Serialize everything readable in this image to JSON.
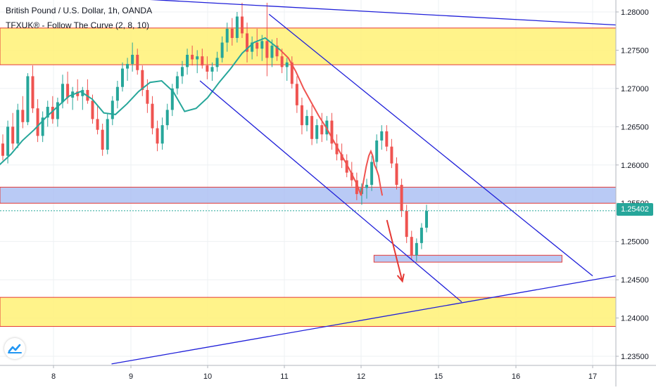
{
  "chart_data": {
    "type": "candlestick",
    "symbol_title": "British Pound / U.S. Dollar, 1h, OANDA",
    "indicator_title": "TFXUK® - Follow The Curve (2, 8, 10)",
    "x_ticks": [
      "8",
      "9",
      "10",
      "11",
      "12",
      "15",
      "16",
      "17"
    ],
    "y_ticks": [
      "1.28000",
      "1.27500",
      "1.27000",
      "1.26500",
      "1.26000",
      "1.25500",
      "1.25000",
      "1.24500",
      "1.24000",
      "1.23500"
    ],
    "ylim": [
      1.2335,
      1.2815
    ],
    "last_price": "1.25402",
    "colors": {
      "up": "#26a69a",
      "down": "#ef5350",
      "trendline": "#1f1fd9",
      "fast_ma": "#ef5350",
      "slow_ma": "#26a69a",
      "supply_zone": "#fff176",
      "demand_zone": "#a8bdf2",
      "zone_border": "#e53935",
      "arrow": "#e53935"
    },
    "zones": [
      {
        "kind": "yellow",
        "top": 1.2779,
        "bottom": 1.2731
      },
      {
        "kind": "blue",
        "top": 1.2571,
        "bottom": 1.255
      },
      {
        "kind": "blue-small",
        "top": 1.2482,
        "bottom": 1.2473,
        "x_from": 12.5,
        "x_to": 16.6
      },
      {
        "kind": "yellow",
        "top": 1.2427,
        "bottom": 1.2389
      }
    ],
    "trendlines": [
      {
        "x1": 9.1,
        "y1": 1.2817,
        "x2": 17.3,
        "y2": 1.2783
      },
      {
        "x1": 10.8,
        "y1": 1.2797,
        "x2": 17.0,
        "y2": 1.2455
      },
      {
        "x1": 9.9,
        "y1": 1.271,
        "x2": 15.3,
        "y2": 1.2421
      },
      {
        "x1": 8.75,
        "y1": 1.234,
        "x2": 17.3,
        "y2": 1.2455
      }
    ],
    "candles_ohlc": [
      [
        1.2628,
        1.264,
        1.2606,
        1.2612
      ],
      [
        1.2612,
        1.2658,
        1.2602,
        1.265
      ],
      [
        1.265,
        1.2668,
        1.262,
        1.2628
      ],
      [
        1.2628,
        1.268,
        1.2622,
        1.2672
      ],
      [
        1.2672,
        1.269,
        1.2648,
        1.2656
      ],
      [
        1.2656,
        1.272,
        1.2652,
        1.2716
      ],
      [
        1.2716,
        1.273,
        1.2668,
        1.2674
      ],
      [
        1.2674,
        1.2686,
        1.263,
        1.2638
      ],
      [
        1.2638,
        1.267,
        1.263,
        1.2662
      ],
      [
        1.2662,
        1.2684,
        1.265,
        1.2676
      ],
      [
        1.2676,
        1.269,
        1.2654,
        1.266
      ],
      [
        1.266,
        1.2688,
        1.265,
        1.2682
      ],
      [
        1.2682,
        1.2718,
        1.2674,
        1.2706
      ],
      [
        1.2706,
        1.2722,
        1.268,
        1.2688
      ],
      [
        1.2688,
        1.2702,
        1.2672,
        1.2696
      ],
      [
        1.2696,
        1.2712,
        1.2684,
        1.269
      ],
      [
        1.269,
        1.2702,
        1.2672,
        1.2698
      ],
      [
        1.2698,
        1.2712,
        1.268,
        1.2684
      ],
      [
        1.2684,
        1.2692,
        1.2654,
        1.266
      ],
      [
        1.266,
        1.2678,
        1.264,
        1.2646
      ],
      [
        1.2646,
        1.2654,
        1.2612,
        1.262
      ],
      [
        1.262,
        1.2668,
        1.2614,
        1.266
      ],
      [
        1.266,
        1.269,
        1.2652,
        1.2684
      ],
      [
        1.2684,
        1.271,
        1.2674,
        1.2702
      ],
      [
        1.2702,
        1.2734,
        1.2696,
        1.2726
      ],
      [
        1.2726,
        1.274,
        1.271,
        1.2732
      ],
      [
        1.2732,
        1.276,
        1.2722,
        1.2744
      ],
      [
        1.2744,
        1.2752,
        1.2718,
        1.2724
      ],
      [
        1.2724,
        1.273,
        1.269,
        1.2698
      ],
      [
        1.2698,
        1.2712,
        1.2668,
        1.268
      ],
      [
        1.268,
        1.269,
        1.264,
        1.2648
      ],
      [
        1.2648,
        1.2658,
        1.2618,
        1.2628
      ],
      [
        1.2628,
        1.2662,
        1.262,
        1.2652
      ],
      [
        1.2652,
        1.268,
        1.2646,
        1.2672
      ],
      [
        1.2672,
        1.2706,
        1.2664,
        1.27
      ],
      [
        1.27,
        1.2722,
        1.2692,
        1.2716
      ],
      [
        1.2716,
        1.2736,
        1.2706,
        1.2728
      ],
      [
        1.2728,
        1.2752,
        1.2718,
        1.2744
      ],
      [
        1.2744,
        1.2756,
        1.273,
        1.2738
      ],
      [
        1.2738,
        1.275,
        1.272,
        1.2742
      ],
      [
        1.2742,
        1.2752,
        1.2726,
        1.273
      ],
      [
        1.273,
        1.2742,
        1.2712,
        1.2722
      ],
      [
        1.2722,
        1.2734,
        1.271,
        1.2728
      ],
      [
        1.2728,
        1.2748,
        1.2722,
        1.274
      ],
      [
        1.274,
        1.2768,
        1.2734,
        1.276
      ],
      [
        1.276,
        1.2786,
        1.2748,
        1.2778
      ],
      [
        1.2778,
        1.2792,
        1.2756,
        1.2766
      ],
      [
        1.2766,
        1.28,
        1.276,
        1.2794
      ],
      [
        1.2794,
        1.2812,
        1.2766,
        1.2772
      ],
      [
        1.2772,
        1.2786,
        1.2734,
        1.2748
      ],
      [
        1.2748,
        1.2768,
        1.2738,
        1.276
      ],
      [
        1.276,
        1.2778,
        1.2742,
        1.2752
      ],
      [
        1.2752,
        1.277,
        1.2736,
        1.2762
      ],
      [
        1.2762,
        1.2812,
        1.2716,
        1.274
      ],
      [
        1.274,
        1.2764,
        1.2728,
        1.2756
      ],
      [
        1.2756,
        1.2766,
        1.2736,
        1.2742
      ],
      [
        1.2742,
        1.2752,
        1.272,
        1.2728
      ],
      [
        1.2728,
        1.274,
        1.271,
        1.2734
      ],
      [
        1.2734,
        1.2742,
        1.27,
        1.2706
      ],
      [
        1.2706,
        1.2716,
        1.2668,
        1.2678
      ],
      [
        1.2678,
        1.2688,
        1.264,
        1.2652
      ],
      [
        1.2652,
        1.2672,
        1.2644,
        1.2664
      ],
      [
        1.2664,
        1.2678,
        1.2626,
        1.2634
      ],
      [
        1.2634,
        1.266,
        1.2628,
        1.2652
      ],
      [
        1.2652,
        1.2668,
        1.263,
        1.264
      ],
      [
        1.264,
        1.2664,
        1.2632,
        1.2658
      ],
      [
        1.2658,
        1.2668,
        1.262,
        1.2628
      ],
      [
        1.2628,
        1.264,
        1.2606,
        1.2614
      ],
      [
        1.2614,
        1.2628,
        1.2596,
        1.2606
      ],
      [
        1.2606,
        1.2614,
        1.2584,
        1.259
      ],
      [
        1.259,
        1.2604,
        1.2572,
        1.258
      ],
      [
        1.258,
        1.259,
        1.2554,
        1.2562
      ],
      [
        1.2562,
        1.2576,
        1.2548,
        1.257
      ],
      [
        1.257,
        1.2582,
        1.2556,
        1.2574
      ],
      [
        1.2574,
        1.2612,
        1.2566,
        1.2604
      ],
      [
        1.2604,
        1.264,
        1.2594,
        1.2632
      ],
      [
        1.2632,
        1.2652,
        1.262,
        1.2644
      ],
      [
        1.2644,
        1.2652,
        1.2618,
        1.2624
      ],
      [
        1.2624,
        1.2634,
        1.2596,
        1.2602
      ],
      [
        1.2602,
        1.261,
        1.2568,
        1.2574
      ],
      [
        1.2574,
        1.2582,
        1.2532,
        1.254
      ],
      [
        1.254,
        1.2548,
        1.2498,
        1.2506
      ],
      [
        1.2506,
        1.2514,
        1.2476,
        1.2482
      ],
      [
        1.2482,
        1.2504,
        1.2474,
        1.2498
      ],
      [
        1.2498,
        1.2524,
        1.249,
        1.2518
      ],
      [
        1.2518,
        1.2548,
        1.2512,
        1.254
      ]
    ],
    "fast_ma": [
      [
        12.0,
        1.256
      ],
      [
        12.1,
        1.258
      ],
      [
        12.2,
        1.2598
      ],
      [
        12.3,
        1.2612
      ],
      [
        12.38,
        1.2618
      ],
      [
        12.45,
        1.2612
      ],
      [
        12.52,
        1.26
      ],
      [
        12.6,
        1.2594
      ],
      [
        12.68,
        1.2586
      ],
      [
        12.75,
        1.2572
      ],
      [
        12.82,
        1.256
      ]
    ],
    "fast_ma_left": [
      [
        10.95,
        1.275
      ],
      [
        11.05,
        1.274
      ],
      [
        11.15,
        1.2722
      ],
      [
        11.25,
        1.27
      ],
      [
        11.35,
        1.2682
      ],
      [
        11.45,
        1.2664
      ],
      [
        11.55,
        1.2648
      ],
      [
        11.65,
        1.263
      ],
      [
        11.75,
        1.2612
      ],
      [
        11.85,
        1.2594
      ],
      [
        11.95,
        1.2574
      ],
      [
        12.0,
        1.256
      ]
    ],
    "slow_ma": [
      [
        7.3,
        1.26
      ],
      [
        7.45,
        1.2614
      ],
      [
        7.6,
        1.2632
      ],
      [
        7.75,
        1.2646
      ],
      [
        7.9,
        1.2662
      ],
      [
        8.05,
        1.2676
      ],
      [
        8.2,
        1.269
      ],
      [
        8.35,
        1.2696
      ],
      [
        8.5,
        1.2686
      ],
      [
        8.65,
        1.2668
      ],
      [
        8.8,
        1.2666
      ],
      [
        8.95,
        1.268
      ],
      [
        9.1,
        1.2696
      ],
      [
        9.25,
        1.2708
      ],
      [
        9.4,
        1.271
      ],
      [
        9.55,
        1.2696
      ],
      [
        9.7,
        1.267
      ],
      [
        9.85,
        1.2674
      ],
      [
        10.0,
        1.2688
      ],
      [
        10.15,
        1.2708
      ],
      [
        10.3,
        1.2726
      ],
      [
        10.45,
        1.2746
      ],
      [
        10.6,
        1.276
      ],
      [
        10.75,
        1.2766
      ],
      [
        10.95,
        1.275
      ]
    ],
    "arrow": {
      "x1": 13.0,
      "y1": 1.2528,
      "x2": 13.6,
      "y2": 1.2448
    }
  }
}
